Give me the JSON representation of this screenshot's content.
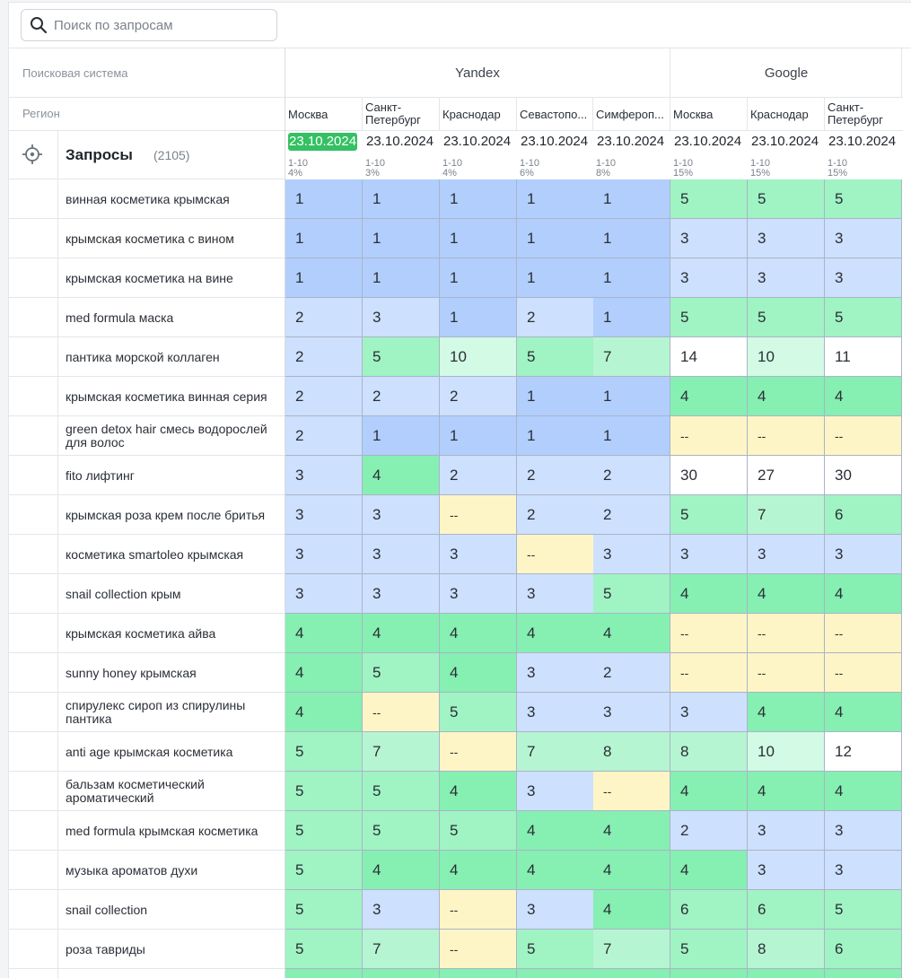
{
  "search": {
    "placeholder": "Поиск по запросам"
  },
  "header": {
    "engine_label": "Поисковая система",
    "region_label": "Регион",
    "engines": [
      "Yandex",
      "Google"
    ],
    "queries_title": "Запросы",
    "queries_count": "(2105)"
  },
  "columns": [
    {
      "engine": "Yandex",
      "region": "Москва",
      "date": "23.10.2024",
      "active": true,
      "range": "1-10",
      "pct": "4%"
    },
    {
      "engine": "Yandex",
      "region": "Санкт-Петербург",
      "date": "23.10.2024",
      "active": false,
      "range": "1-10",
      "pct": "3%"
    },
    {
      "engine": "Yandex",
      "region": "Краснодар",
      "date": "23.10.2024",
      "active": false,
      "range": "1-10",
      "pct": "4%"
    },
    {
      "engine": "Yandex",
      "region": "Севастопо...",
      "date": "23.10.2024",
      "active": false,
      "range": "1-10",
      "pct": "6%"
    },
    {
      "engine": "Yandex",
      "region": "Симфероп...",
      "date": "23.10.2024",
      "active": false,
      "range": "1-10",
      "pct": "8%"
    },
    {
      "engine": "Google",
      "region": "Москва",
      "date": "23.10.2024",
      "active": false,
      "range": "1-10",
      "pct": "15%"
    },
    {
      "engine": "Google",
      "region": "Краснодар",
      "date": "23.10.2024",
      "active": false,
      "range": "1-10",
      "pct": "15%"
    },
    {
      "engine": "Google",
      "region": "Санкт-Петербург",
      "date": "23.10.2024",
      "active": false,
      "range": "1-10",
      "pct": "15%"
    }
  ],
  "rows": [
    {
      "query": "винная косметика крымская",
      "values": [
        "1",
        "1",
        "1",
        "1",
        "1",
        "5",
        "5",
        "5"
      ]
    },
    {
      "query": "крымская косметика с вином",
      "values": [
        "1",
        "1",
        "1",
        "1",
        "1",
        "3",
        "3",
        "3"
      ]
    },
    {
      "query": "крымская косметика на вине",
      "values": [
        "1",
        "1",
        "1",
        "1",
        "1",
        "3",
        "3",
        "3"
      ]
    },
    {
      "query": "med formula маска",
      "values": [
        "2",
        "3",
        "1",
        "2",
        "1",
        "5",
        "5",
        "5"
      ]
    },
    {
      "query": "пантика морской коллаген",
      "values": [
        "2",
        "5",
        "10",
        "5",
        "7",
        "14",
        "10",
        "11"
      ]
    },
    {
      "query": "крымская косметика винная серия",
      "values": [
        "2",
        "2",
        "2",
        "1",
        "1",
        "4",
        "4",
        "4"
      ]
    },
    {
      "query": "green detox hair смесь водорослей для волос",
      "values": [
        "2",
        "1",
        "1",
        "1",
        "1",
        "--",
        "--",
        "--"
      ]
    },
    {
      "query": "fito лифтинг",
      "values": [
        "3",
        "4",
        "2",
        "2",
        "2",
        "30",
        "27",
        "30"
      ]
    },
    {
      "query": "крымская роза крем после бритья",
      "values": [
        "3",
        "3",
        "--",
        "2",
        "2",
        "5",
        "7",
        "6"
      ]
    },
    {
      "query": "косметика smartoleo крымская",
      "values": [
        "3",
        "3",
        "3",
        "--",
        "3",
        "3",
        "3",
        "3"
      ]
    },
    {
      "query": "snail collection крым",
      "values": [
        "3",
        "3",
        "3",
        "3",
        "5",
        "4",
        "4",
        "4"
      ]
    },
    {
      "query": "крымская косметика айва",
      "values": [
        "4",
        "4",
        "4",
        "4",
        "4",
        "--",
        "--",
        "--"
      ]
    },
    {
      "query": "sunny honey крымская",
      "values": [
        "4",
        "5",
        "4",
        "3",
        "2",
        "--",
        "--",
        "--"
      ]
    },
    {
      "query": "спирулекс сироп из спирулины пантика",
      "values": [
        "4",
        "--",
        "5",
        "3",
        "3",
        "3",
        "4",
        "4"
      ]
    },
    {
      "query": "anti age крымская косметика",
      "values": [
        "5",
        "7",
        "--",
        "7",
        "8",
        "8",
        "10",
        "12"
      ]
    },
    {
      "query": "бальзам косметический ароматический",
      "values": [
        "5",
        "5",
        "4",
        "3",
        "--",
        "4",
        "4",
        "4"
      ]
    },
    {
      "query": "med formula крымская косметика",
      "values": [
        "5",
        "5",
        "5",
        "4",
        "4",
        "2",
        "3",
        "3"
      ]
    },
    {
      "query": "музыка ароматов духи",
      "values": [
        "5",
        "4",
        "4",
        "4",
        "4",
        "4",
        "3",
        "3"
      ]
    },
    {
      "query": "snail collection",
      "values": [
        "5",
        "3",
        "--",
        "3",
        "4",
        "6",
        "6",
        "5"
      ]
    },
    {
      "query": "роза тавриды",
      "values": [
        "5",
        "7",
        "--",
        "5",
        "7",
        "5",
        "8",
        "6"
      ]
    },
    {
      "query": "",
      "values": [
        "",
        "",
        "",
        "",
        "",
        "",
        "",
        ""
      ]
    }
  ],
  "colors": {
    "pos1": "#b1cefd",
    "pos2_3": "#cde0fd",
    "pos4": "#86efb2",
    "pos5_6": "#a0f3c3",
    "pos7_9": "#b6f5d1",
    "pos10": "#d2fae4",
    "pos11plus": "#ffffff",
    "none": "#fdf5c6",
    "active_date": "#34c063"
  }
}
